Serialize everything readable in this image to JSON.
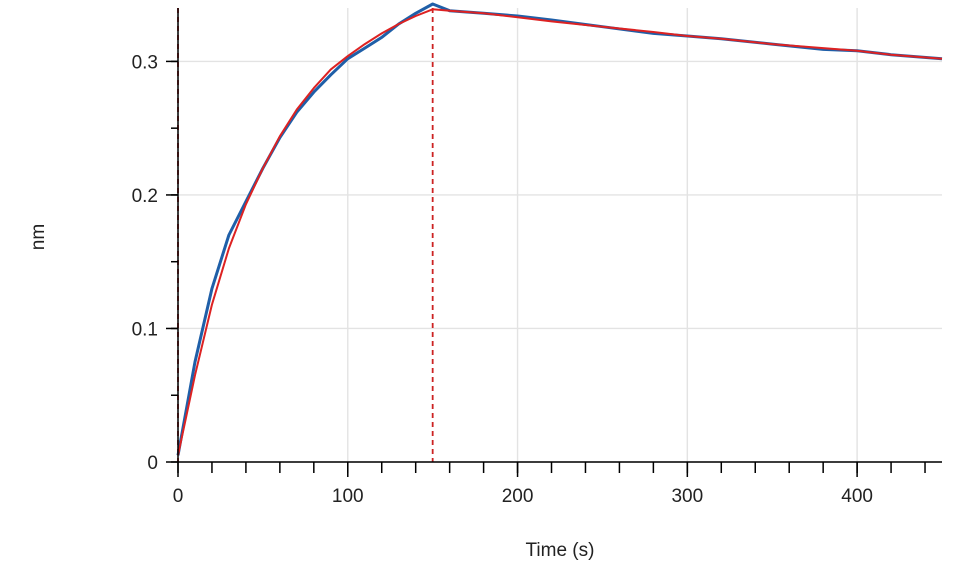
{
  "chart_data": {
    "type": "line",
    "xlabel": "Time (s)",
    "ylabel": "nm",
    "xlim": [
      0,
      450
    ],
    "ylim": [
      0,
      0.34
    ],
    "x_ticks": [
      0,
      100,
      200,
      300,
      400
    ],
    "x_tick_labels": [
      "0",
      "100",
      "200",
      "300",
      "400"
    ],
    "x_minor_step": 20,
    "y_ticks": [
      0,
      0.1,
      0.2,
      0.3
    ],
    "y_tick_labels": [
      "0",
      "0.1",
      "0.2",
      "0.3"
    ],
    "y_minor_step": 0.05,
    "grid": true,
    "markers": [
      {
        "x": 0,
        "style": "dashed",
        "color": "#cc2222"
      },
      {
        "x": 150,
        "style": "dashed",
        "color": "#cc2222"
      }
    ],
    "series": [
      {
        "color": "#1f5fa8",
        "x": [
          0,
          5,
          10,
          20,
          30,
          40,
          50,
          60,
          70,
          80,
          90,
          100,
          110,
          120,
          130,
          140,
          150,
          160,
          180,
          200,
          220,
          250,
          280,
          300,
          320,
          350,
          380,
          400,
          420,
          450
        ],
        "y": [
          0.005,
          0.04,
          0.075,
          0.13,
          0.17,
          0.195,
          0.22,
          0.243,
          0.262,
          0.277,
          0.29,
          0.302,
          0.31,
          0.318,
          0.328,
          0.336,
          0.343,
          0.338,
          0.336,
          0.334,
          0.331,
          0.326,
          0.321,
          0.319,
          0.317,
          0.313,
          0.309,
          0.308,
          0.305,
          0.302
        ]
      },
      {
        "color": "#dd2222",
        "x": [
          0,
          5,
          10,
          20,
          30,
          40,
          50,
          60,
          70,
          80,
          90,
          100,
          110,
          120,
          130,
          140,
          150,
          160,
          180,
          200,
          220,
          250,
          280,
          300,
          320,
          350,
          380,
          400,
          420,
          450
        ],
        "y": [
          0.005,
          0.035,
          0.065,
          0.118,
          0.16,
          0.193,
          0.22,
          0.244,
          0.264,
          0.28,
          0.294,
          0.304,
          0.313,
          0.321,
          0.328,
          0.334,
          0.339,
          0.338,
          0.336,
          0.333,
          0.33,
          0.326,
          0.322,
          0.319,
          0.317,
          0.313,
          0.31,
          0.308,
          0.305,
          0.302
        ]
      }
    ]
  }
}
